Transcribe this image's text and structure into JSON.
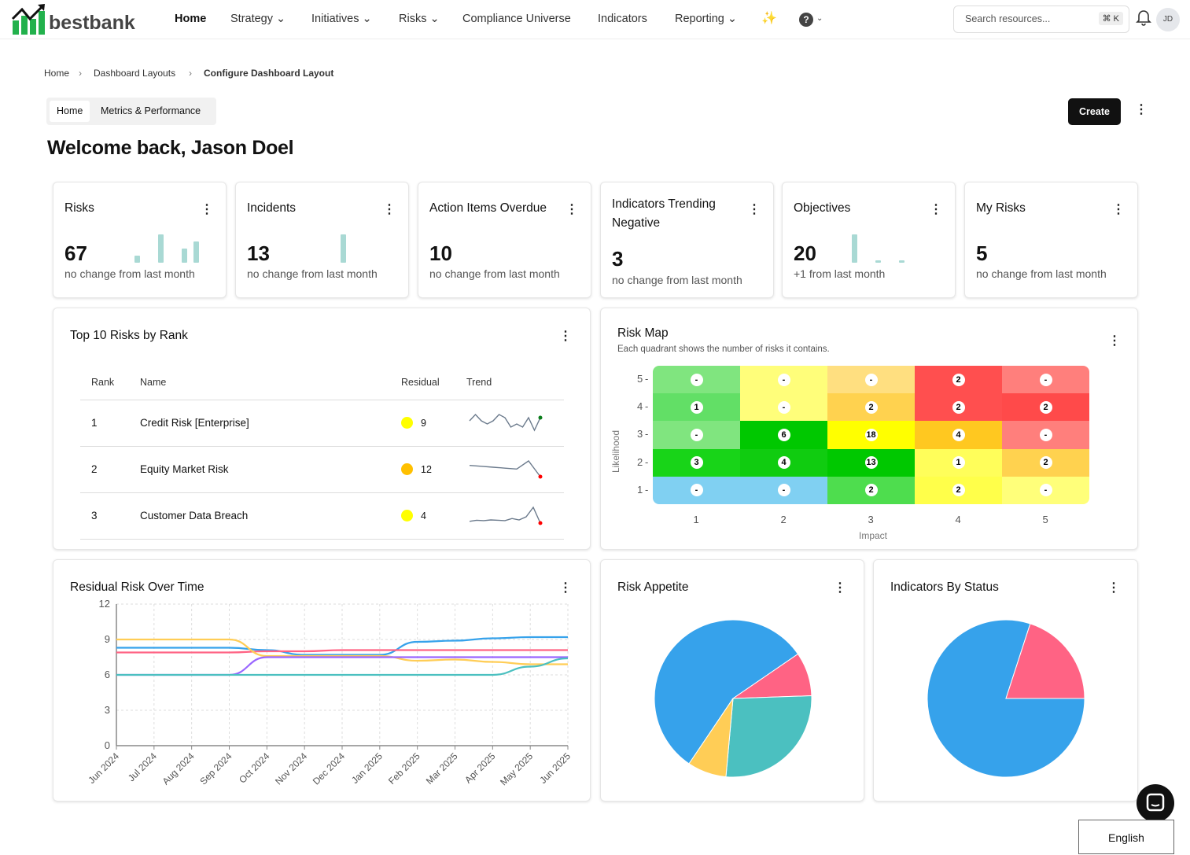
{
  "brand": {
    "name": "bestbank"
  },
  "nav": {
    "items": [
      {
        "label": "Home"
      },
      {
        "label": "Strategy ⌄"
      },
      {
        "label": "Initiatives ⌄"
      },
      {
        "label": "Risks ⌄"
      },
      {
        "label": "Compliance Universe"
      },
      {
        "label": "Indicators"
      },
      {
        "label": "Reporting ⌄"
      }
    ],
    "search_placeholder": "Search resources...",
    "shortcut": "⌘ K",
    "avatar": "JD"
  },
  "breadcrumb": [
    "Home",
    "Dashboard Layouts",
    "Configure Dashboard Layout"
  ],
  "tabs": [
    "Home",
    "Metrics & Performance"
  ],
  "create_label": "Create",
  "welcome": "Welcome back, Jason Doel",
  "kpis": [
    {
      "title": "Risks",
      "value": "67",
      "sub": "no change from last month",
      "bars": [
        0,
        1,
        0,
        4,
        0,
        2,
        3
      ]
    },
    {
      "title": "Incidents",
      "value": "13",
      "sub": "no change from last month",
      "bars": [
        0,
        0,
        0,
        4,
        0,
        0,
        0
      ]
    },
    {
      "title": "Action Items Overdue",
      "value": "10",
      "sub": "no change from last month",
      "bars": []
    },
    {
      "title": "Indicators Trending Negative",
      "value": "3",
      "sub": "no change from last month",
      "bars": []
    },
    {
      "title": "Objectives",
      "value": "20",
      "sub": "+1 from last month",
      "bars": [
        4,
        0,
        0.3,
        0,
        0.1
      ]
    },
    {
      "title": "My Risks",
      "value": "5",
      "sub": "no change from last month",
      "bars": []
    }
  ],
  "top_risks": {
    "title": "Top 10 Risks by Rank",
    "columns": [
      "Rank",
      "Name",
      "Residual",
      "Trend"
    ],
    "rows": [
      {
        "rank": "1",
        "name": "Credit Risk [Enterprise]",
        "residual": "9",
        "color": "#ffff00",
        "trend": [
          5,
          7,
          5,
          4,
          5,
          7,
          6,
          3,
          4,
          3,
          6,
          2,
          6
        ],
        "end_color": "#0a7d1a"
      },
      {
        "rank": "2",
        "name": "Equity Market Risk",
        "residual": "12",
        "color": "#ffc000",
        "trend": [
          7,
          6.8,
          6.6,
          6.4,
          6.2,
          8,
          4.5
        ],
        "end_color": "#ff0000"
      },
      {
        "rank": "3",
        "name": "Customer Data Breach",
        "residual": "4",
        "color": "#ffff00",
        "trend": [
          2,
          2.3,
          2.2,
          2.4,
          2.3,
          2.2,
          2.8,
          2.4,
          3.3,
          6,
          1.5
        ],
        "end_color": "#ff0000"
      }
    ]
  },
  "risk_map": {
    "title": "Risk Map",
    "subtitle": "Each quadrant shows the number of risks it contains.",
    "xlabel": "Impact",
    "ylabel": "Likelihood",
    "x_ticks": [
      "1",
      "2",
      "3",
      "4",
      "5"
    ],
    "y_ticks": [
      "5",
      "4",
      "3",
      "2",
      "1"
    ],
    "cells": [
      [
        {
          "v": "-",
          "c": "#80e57f"
        },
        {
          "v": "-",
          "c": "#fffe7a"
        },
        {
          "v": "-",
          "c": "#ffdf80"
        },
        {
          "v": "2",
          "c": "#ff4f4f"
        },
        {
          "v": "-",
          "c": "#ff7f7c"
        }
      ],
      [
        {
          "v": "1",
          "c": "#62df66"
        },
        {
          "v": "-",
          "c": "#fffe7a"
        },
        {
          "v": "2",
          "c": "#ffd24f"
        },
        {
          "v": "2",
          "c": "#ff4f4f"
        },
        {
          "v": "2",
          "c": "#ff4a4a"
        }
      ],
      [
        {
          "v": "-",
          "c": "#80e57f"
        },
        {
          "v": "6",
          "c": "#00c800"
        },
        {
          "v": "18",
          "c": "#ffff00"
        },
        {
          "v": "4",
          "c": "#ffc820"
        },
        {
          "v": "-",
          "c": "#ff7f7c"
        }
      ],
      [
        {
          "v": "3",
          "c": "#18d418"
        },
        {
          "v": "4",
          "c": "#10cc10"
        },
        {
          "v": "13",
          "c": "#00c800"
        },
        {
          "v": "1",
          "c": "#fffe5a"
        },
        {
          "v": "2",
          "c": "#ffd24f"
        }
      ],
      [
        {
          "v": "-",
          "c": "#80d0f2"
        },
        {
          "v": "-",
          "c": "#80d0f2"
        },
        {
          "v": "2",
          "c": "#4edd4e"
        },
        {
          "v": "2",
          "c": "#ffff4a"
        },
        {
          "v": "-",
          "c": "#ffff7a"
        }
      ]
    ]
  },
  "chart_data": [
    {
      "type": "line",
      "title": "Residual Risk Over Time",
      "categories": [
        "Jun 2024",
        "Jul 2024",
        "Aug 2024",
        "Sep 2024",
        "Oct 2024",
        "Nov 2024",
        "Dec 2024",
        "Jan 2025",
        "Feb 2025",
        "Mar 2025",
        "Apr 2025",
        "May 2025",
        "Jun 2025"
      ],
      "ylim": [
        0,
        12
      ],
      "y_ticks": [
        "0",
        "3",
        "6",
        "9",
        "12"
      ],
      "grid": true,
      "series": [
        {
          "color": "#36a2eb",
          "values": [
            8.3,
            8.3,
            8.3,
            8.3,
            8.1,
            7.7,
            7.7,
            7.7,
            8.8,
            8.9,
            9.1,
            9.2,
            9.2
          ]
        },
        {
          "color": "#ff6384",
          "values": [
            7.9,
            7.9,
            7.9,
            7.9,
            8.0,
            8.0,
            8.1,
            8.1,
            8.1,
            8.1,
            8.1,
            8.1,
            8.1
          ]
        },
        {
          "color": "#ffcd56",
          "values": [
            9,
            9,
            9,
            9,
            7.6,
            7.6,
            7.6,
            7.6,
            7.2,
            7.3,
            7.1,
            6.9,
            6.9
          ]
        },
        {
          "color": "#9966ff",
          "values": [
            6,
            6,
            6,
            6,
            7.5,
            7.5,
            7.5,
            7.5,
            7.5,
            7.5,
            7.5,
            7.5,
            7.5
          ]
        },
        {
          "color": "#4bc0c0",
          "values": [
            6,
            6,
            6,
            6,
            6,
            6,
            6,
            6,
            6,
            6,
            6,
            6.7,
            7.4
          ]
        }
      ]
    },
    {
      "type": "pie",
      "title": "Risk Appetite",
      "values": [
        56,
        9,
        27,
        8
      ],
      "colors": [
        "#36a2eb",
        "#ff6384",
        "#4bc0c0",
        "#ffcd56"
      ]
    },
    {
      "type": "pie",
      "title": "Indicators By Status",
      "values": [
        80,
        20
      ],
      "colors": [
        "#36a2eb",
        "#ff6384"
      ]
    }
  ],
  "footer": {
    "language": "English"
  }
}
